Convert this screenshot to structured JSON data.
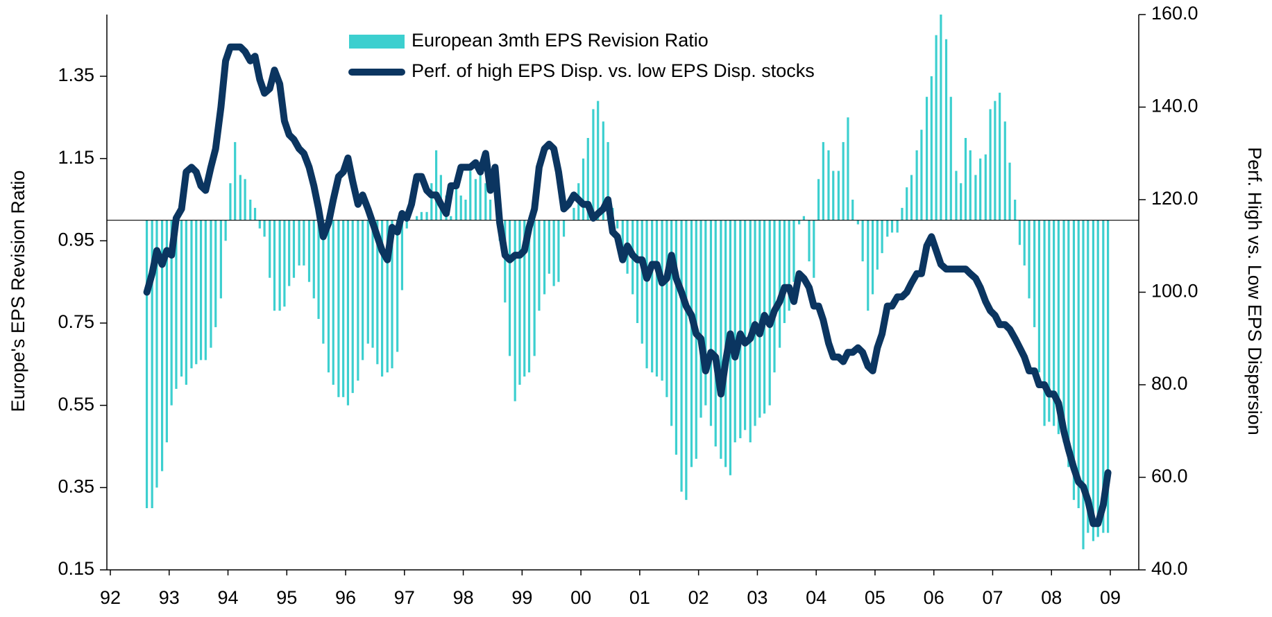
{
  "chart_data": {
    "type": "combo",
    "y_label": "Europe's EPS Revision Ratio",
    "y2_label": "Perf. High vs. Low EPS Dispersion",
    "xlim": [
      92,
      109
    ],
    "xticks": [
      92,
      93,
      94,
      95,
      96,
      97,
      98,
      99,
      {
        "value": 100,
        "label": "00"
      },
      {
        "value": 101,
        "label": "01"
      },
      {
        "value": 102,
        "label": "02"
      },
      {
        "value": 103,
        "label": "03"
      },
      {
        "value": 104,
        "label": "04"
      },
      {
        "value": 105,
        "label": "05"
      },
      {
        "value": 106,
        "label": "06"
      },
      {
        "value": 107,
        "label": "07"
      },
      {
        "value": 108,
        "label": "08"
      },
      {
        "value": 109,
        "label": "09"
      }
    ],
    "ylim": [
      0.15,
      1.5
    ],
    "yticks": [
      0.15,
      0.35,
      0.55,
      0.75,
      0.95,
      1.15,
      1.35
    ],
    "y2lim": [
      40,
      160
    ],
    "y2ticks": [
      {
        "value": 40,
        "label": "40.0"
      },
      {
        "value": 60,
        "label": "60.0"
      },
      {
        "value": 80,
        "label": "80.0"
      },
      {
        "value": 100,
        "label": "100.0"
      },
      {
        "value": 120,
        "label": "120.0"
      },
      {
        "value": 140,
        "label": "140.0"
      },
      {
        "value": 160,
        "label": "160.0"
      }
    ],
    "bar_base": 1,
    "legend": "top-center",
    "x": [
      92.62,
      92.71,
      92.79,
      92.88,
      92.96,
      93.04,
      93.12,
      93.21,
      93.29,
      93.38,
      93.46,
      93.54,
      93.62,
      93.71,
      93.79,
      93.88,
      93.96,
      94.04,
      94.12,
      94.21,
      94.29,
      94.38,
      94.46,
      94.54,
      94.62,
      94.71,
      94.79,
      94.88,
      94.96,
      95.04,
      95.12,
      95.21,
      95.29,
      95.38,
      95.46,
      95.54,
      95.62,
      95.71,
      95.79,
      95.88,
      95.96,
      96.04,
      96.12,
      96.21,
      96.29,
      96.38,
      96.46,
      96.54,
      96.62,
      96.71,
      96.79,
      96.88,
      96.96,
      97.04,
      97.12,
      97.21,
      97.29,
      97.38,
      97.46,
      97.54,
      97.62,
      97.71,
      97.79,
      97.88,
      97.96,
      98.04,
      98.12,
      98.21,
      98.29,
      98.38,
      98.46,
      98.54,
      98.62,
      98.71,
      98.79,
      98.88,
      98.96,
      99.04,
      99.12,
      99.21,
      99.29,
      99.38,
      99.46,
      99.54,
      99.62,
      99.71,
      99.79,
      99.88,
      99.96,
      100.04,
      100.12,
      100.21,
      100.29,
      100.38,
      100.46,
      100.54,
      100.62,
      100.71,
      100.79,
      100.88,
      100.96,
      101.04,
      101.12,
      101.21,
      101.29,
      101.38,
      101.46,
      101.54,
      101.62,
      101.71,
      101.79,
      101.88,
      101.96,
      102.04,
      102.12,
      102.21,
      102.29,
      102.38,
      102.46,
      102.54,
      102.62,
      102.71,
      102.79,
      102.88,
      102.96,
      103.04,
      103.12,
      103.21,
      103.29,
      103.38,
      103.46,
      103.54,
      103.62,
      103.71,
      103.79,
      103.88,
      103.96,
      104.04,
      104.12,
      104.21,
      104.29,
      104.38,
      104.46,
      104.54,
      104.62,
      104.71,
      104.79,
      104.88,
      104.96,
      105.04,
      105.12,
      105.21,
      105.29,
      105.38,
      105.46,
      105.54,
      105.62,
      105.71,
      105.79,
      105.88,
      105.96,
      106.04,
      106.12,
      106.21,
      106.29,
      106.38,
      106.46,
      106.54,
      106.62,
      106.71,
      106.79,
      106.88,
      106.96,
      107.04,
      107.12,
      107.21,
      107.29,
      107.38,
      107.46,
      107.54,
      107.62,
      107.71,
      107.79,
      107.88,
      107.96,
      108.04,
      108.12,
      108.21,
      108.29,
      108.38,
      108.46,
      108.54,
      108.62,
      108.71,
      108.79,
      108.88,
      108.96
    ],
    "series": [
      {
        "name": "European 3mth EPS Revision Ratio",
        "type": "bar",
        "color": "#3ccfcf",
        "values": [
          0.3,
          0.3,
          0.35,
          0.39,
          0.46,
          0.55,
          0.59,
          0.62,
          0.6,
          0.64,
          0.65,
          0.66,
          0.66,
          0.69,
          0.74,
          0.81,
          0.95,
          1.09,
          1.19,
          1.11,
          1.1,
          1.05,
          1.03,
          0.98,
          0.96,
          0.86,
          0.78,
          0.78,
          0.79,
          0.84,
          0.86,
          0.89,
          0.89,
          0.85,
          0.81,
          0.76,
          0.7,
          0.63,
          0.6,
          0.57,
          0.57,
          0.55,
          0.58,
          0.61,
          0.66,
          0.7,
          0.69,
          0.65,
          0.62,
          0.63,
          0.64,
          0.68,
          0.83,
          0.98,
          1.0,
          1.01,
          1.02,
          1.02,
          1.09,
          1.17,
          1.11,
          1.06,
          1.01,
          1.08,
          1.06,
          1.05,
          1.12,
          1.1,
          1.11,
          1.09,
          1.05,
          1.0,
          0.95,
          0.8,
          0.67,
          0.56,
          0.6,
          0.62,
          0.63,
          0.67,
          0.78,
          0.82,
          0.87,
          0.84,
          0.85,
          0.96,
          1.0,
          1.03,
          1.09,
          1.15,
          1.2,
          1.27,
          1.29,
          1.24,
          1.19,
          1.03,
          0.98,
          0.93,
          0.87,
          0.82,
          0.75,
          0.7,
          0.64,
          0.63,
          0.62,
          0.61,
          0.57,
          0.5,
          0.43,
          0.34,
          0.32,
          0.4,
          0.42,
          0.52,
          0.55,
          0.5,
          0.45,
          0.42,
          0.4,
          0.38,
          0.46,
          0.47,
          0.49,
          0.46,
          0.5,
          0.52,
          0.53,
          0.55,
          0.63,
          0.69,
          0.75,
          0.78,
          0.85,
          0.99,
          1.01,
          0.9,
          0.86,
          1.1,
          1.19,
          1.17,
          1.12,
          1.12,
          1.19,
          1.25,
          1.05,
          0.99,
          0.9,
          0.78,
          0.82,
          0.88,
          0.92,
          0.96,
          0.97,
          0.97,
          1.03,
          1.08,
          1.11,
          1.17,
          1.22,
          1.3,
          1.35,
          1.45,
          1.5,
          1.44,
          1.3,
          1.12,
          1.09,
          1.2,
          1.17,
          1.11,
          1.15,
          1.16,
          1.27,
          1.29,
          1.31,
          1.24,
          1.14,
          1.05,
          0.94,
          0.89,
          0.81,
          0.74,
          0.63,
          0.5,
          0.51,
          0.5,
          0.48,
          0.46,
          0.4,
          0.32,
          0.3,
          0.2,
          0.24,
          0.22,
          0.23,
          0.24,
          0.24
        ]
      },
      {
        "name": "Perf. of high EPS Disp. vs. low EPS Disp. stocks",
        "type": "line",
        "axis": "y2",
        "color": "#0b3560",
        "values": [
          100,
          104,
          109,
          106,
          109,
          108,
          116,
          118,
          126,
          127,
          126,
          123,
          122,
          127,
          131,
          140,
          150,
          153,
          153,
          153,
          152,
          150,
          151,
          146,
          143,
          144,
          148,
          145,
          137,
          134,
          133,
          131,
          130,
          127,
          123,
          118,
          112,
          115,
          120,
          125,
          126,
          129,
          124,
          119,
          121,
          118,
          115,
          112,
          109,
          107,
          114,
          113,
          117,
          116,
          119,
          125,
          125,
          122,
          121,
          121,
          119,
          117,
          123,
          123,
          127,
          127,
          127,
          128,
          126,
          130,
          122,
          127,
          115,
          108,
          107,
          108,
          108,
          109,
          114,
          118,
          127,
          131,
          132,
          131,
          126,
          118,
          119,
          121,
          120,
          119,
          119,
          116,
          117,
          118,
          120,
          113,
          112,
          107,
          110,
          108,
          107,
          107,
          103,
          106,
          106,
          102,
          103,
          108,
          103,
          100,
          97,
          95,
          91,
          90,
          83,
          87,
          86,
          78,
          85,
          91,
          86,
          91,
          89,
          90,
          93,
          91,
          95,
          93,
          96,
          98,
          101,
          101,
          98,
          104,
          103,
          101,
          97,
          97,
          94,
          89,
          86,
          86,
          85,
          87,
          87,
          88,
          87,
          84,
          83,
          88,
          91,
          97,
          97,
          99,
          99,
          100,
          102,
          104,
          104,
          110,
          112,
          109,
          106,
          105,
          105,
          105,
          105,
          105,
          104,
          103,
          101,
          98,
          96,
          95,
          93,
          93,
          92,
          90,
          88,
          86,
          83,
          83,
          80,
          80,
          78,
          78,
          76,
          70,
          66,
          62,
          59,
          58,
          55,
          50,
          50,
          54,
          61
        ]
      }
    ]
  }
}
